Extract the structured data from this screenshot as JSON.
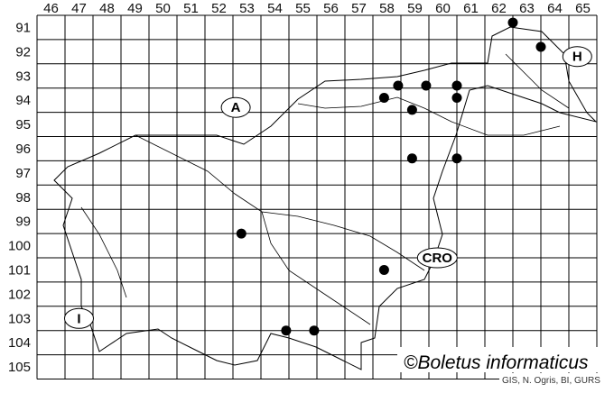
{
  "map": {
    "columns": [
      "46",
      "47",
      "48",
      "49",
      "50",
      "51",
      "52",
      "53",
      "54",
      "55",
      "56",
      "57",
      "58",
      "59",
      "60",
      "61",
      "62",
      "63",
      "64",
      "65"
    ],
    "rows": [
      "91",
      "92",
      "93",
      "94",
      "95",
      "96",
      "97",
      "98",
      "99",
      "100",
      "101",
      "102",
      "103",
      "104",
      "105"
    ],
    "country_labels": [
      {
        "label": "A",
        "col": 52.6,
        "row": 94.3
      },
      {
        "label": "H",
        "col": 64.8,
        "row": 92.2
      },
      {
        "label": "CRO",
        "col": 59.8,
        "row": 100.5
      },
      {
        "label": "I",
        "col": 47.0,
        "row": 103.0
      }
    ],
    "records": [
      {
        "col": 62.5,
        "row": 90.8
      },
      {
        "col": 63.5,
        "row": 91.8
      },
      {
        "col": 58.4,
        "row": 93.4
      },
      {
        "col": 59.4,
        "row": 93.4
      },
      {
        "col": 60.5,
        "row": 93.4
      },
      {
        "col": 57.9,
        "row": 93.9
      },
      {
        "col": 60.5,
        "row": 93.9
      },
      {
        "col": 58.9,
        "row": 94.4
      },
      {
        "col": 58.9,
        "row": 96.4
      },
      {
        "col": 60.5,
        "row": 96.4
      },
      {
        "col": 52.8,
        "row": 99.5
      },
      {
        "col": 57.9,
        "row": 101.0
      },
      {
        "col": 54.4,
        "row": 103.5
      },
      {
        "col": 55.4,
        "row": 103.5
      }
    ],
    "marker_color": "#000000",
    "credit": "©Boletus informaticus",
    "source": "GIS, N. Ogris, BI, GURS"
  }
}
